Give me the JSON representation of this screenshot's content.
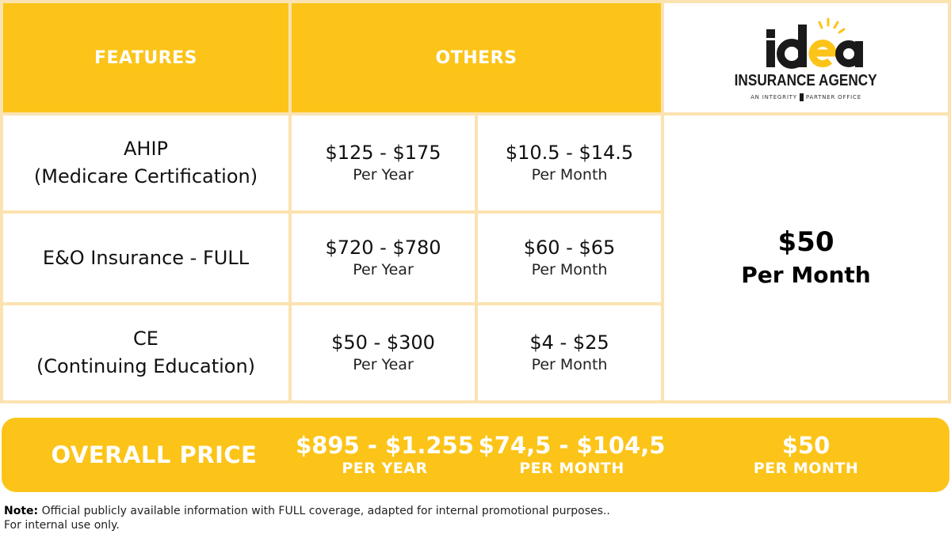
{
  "header": {
    "features_label": "FEATURES",
    "others_label": "OTHERS"
  },
  "logo": {
    "wordmark": "idea",
    "name": "INSURANCE AGENCY",
    "tagline_left": "AN INTEGRITY",
    "tagline_right": "PARTNER OFFICE",
    "colors": {
      "dark": "#1a1a1a",
      "accent": "#fcc419"
    }
  },
  "rows": [
    {
      "feature_line1": "AHIP",
      "feature_line2": "(Medicare Certification)",
      "yearly": "$125 - $175",
      "yearly_unit": "Per Year",
      "monthly": "$10.5 - $14.5",
      "monthly_unit": "Per Month"
    },
    {
      "feature_line1": "E&O Insurance - FULL",
      "feature_line2": "",
      "yearly": "$720 - $780",
      "yearly_unit": "Per Year",
      "monthly": "$60 - $65",
      "monthly_unit": "Per Month"
    },
    {
      "feature_line1": "CE",
      "feature_line2": "(Continuing Education)",
      "yearly": "$50 - $300",
      "yearly_unit": "Per Year",
      "monthly": "$4 - $25",
      "monthly_unit": "Per Month"
    }
  ],
  "idea_offer": {
    "price": "$50",
    "unit": "Per Month"
  },
  "overall": {
    "label": "OVERALL PRICE",
    "yearly": "$895 - $1.255",
    "yearly_unit": "PER YEAR",
    "monthly": "$74,5 - $104,5",
    "monthly_unit": "PER MONTH",
    "idea_price": "$50",
    "idea_unit": "PER MONTH"
  },
  "note": {
    "label": "Note:",
    "text": " Official publicly available information with FULL coverage, adapted for internal promotional purposes..",
    "line2": "For internal use only."
  },
  "colors": {
    "accent_yellow": "#fcc419",
    "grid_line": "#fbe3b1",
    "text_dark": "#111111",
    "header_text": "#ffffff"
  }
}
